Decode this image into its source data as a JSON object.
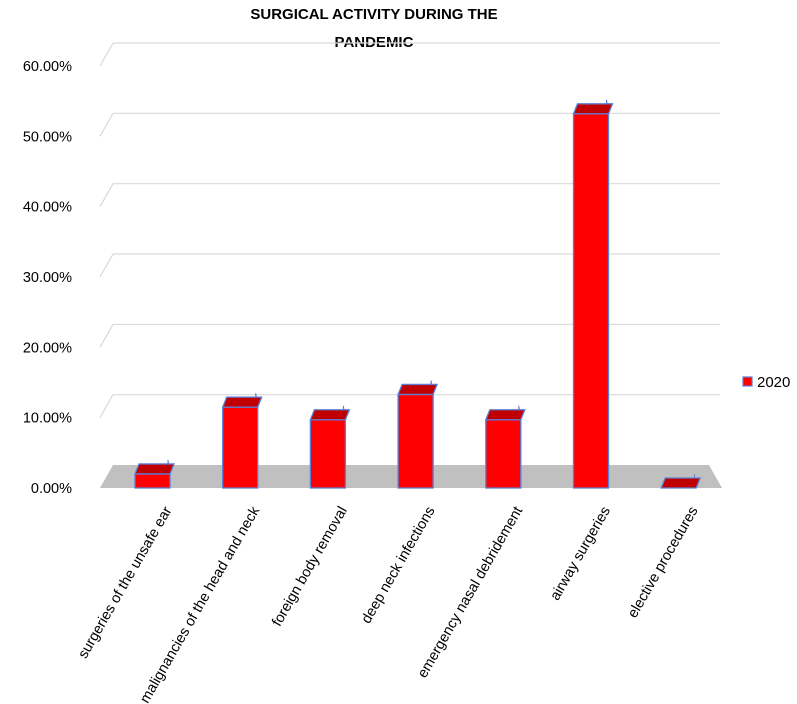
{
  "chart_data": {
    "type": "bar",
    "title_lines": [
      "SURGICAL ACTIVITY DURING THE",
      "PANDEMIC"
    ],
    "categories": [
      "surgeries of the unsafe ear",
      "malignancies of the head and neck",
      "foreign body removal",
      "deep neck infections",
      "emergency nasal debridement",
      "airway surgeries",
      "elective  procedures"
    ],
    "series": [
      {
        "name": "2020",
        "values": [
          0.02,
          0.115,
          0.097,
          0.133,
          0.097,
          0.532,
          0.0
        ]
      }
    ],
    "y_ticks": [
      "0.00%",
      "10.00%",
      "20.00%",
      "30.00%",
      "40.00%",
      "50.00%",
      "60.00%"
    ],
    "ylim": [
      0,
      0.6
    ],
    "grid": true,
    "legend_position": "right",
    "style": "3d-column",
    "colors": {
      "bar_front": "#ff0000",
      "bar_top": "#c00000",
      "bar_side": "#a00000",
      "bar_edge": "#5b7fd6",
      "floor": "#c0c0c0",
      "grid": "#d9d9d9"
    }
  }
}
